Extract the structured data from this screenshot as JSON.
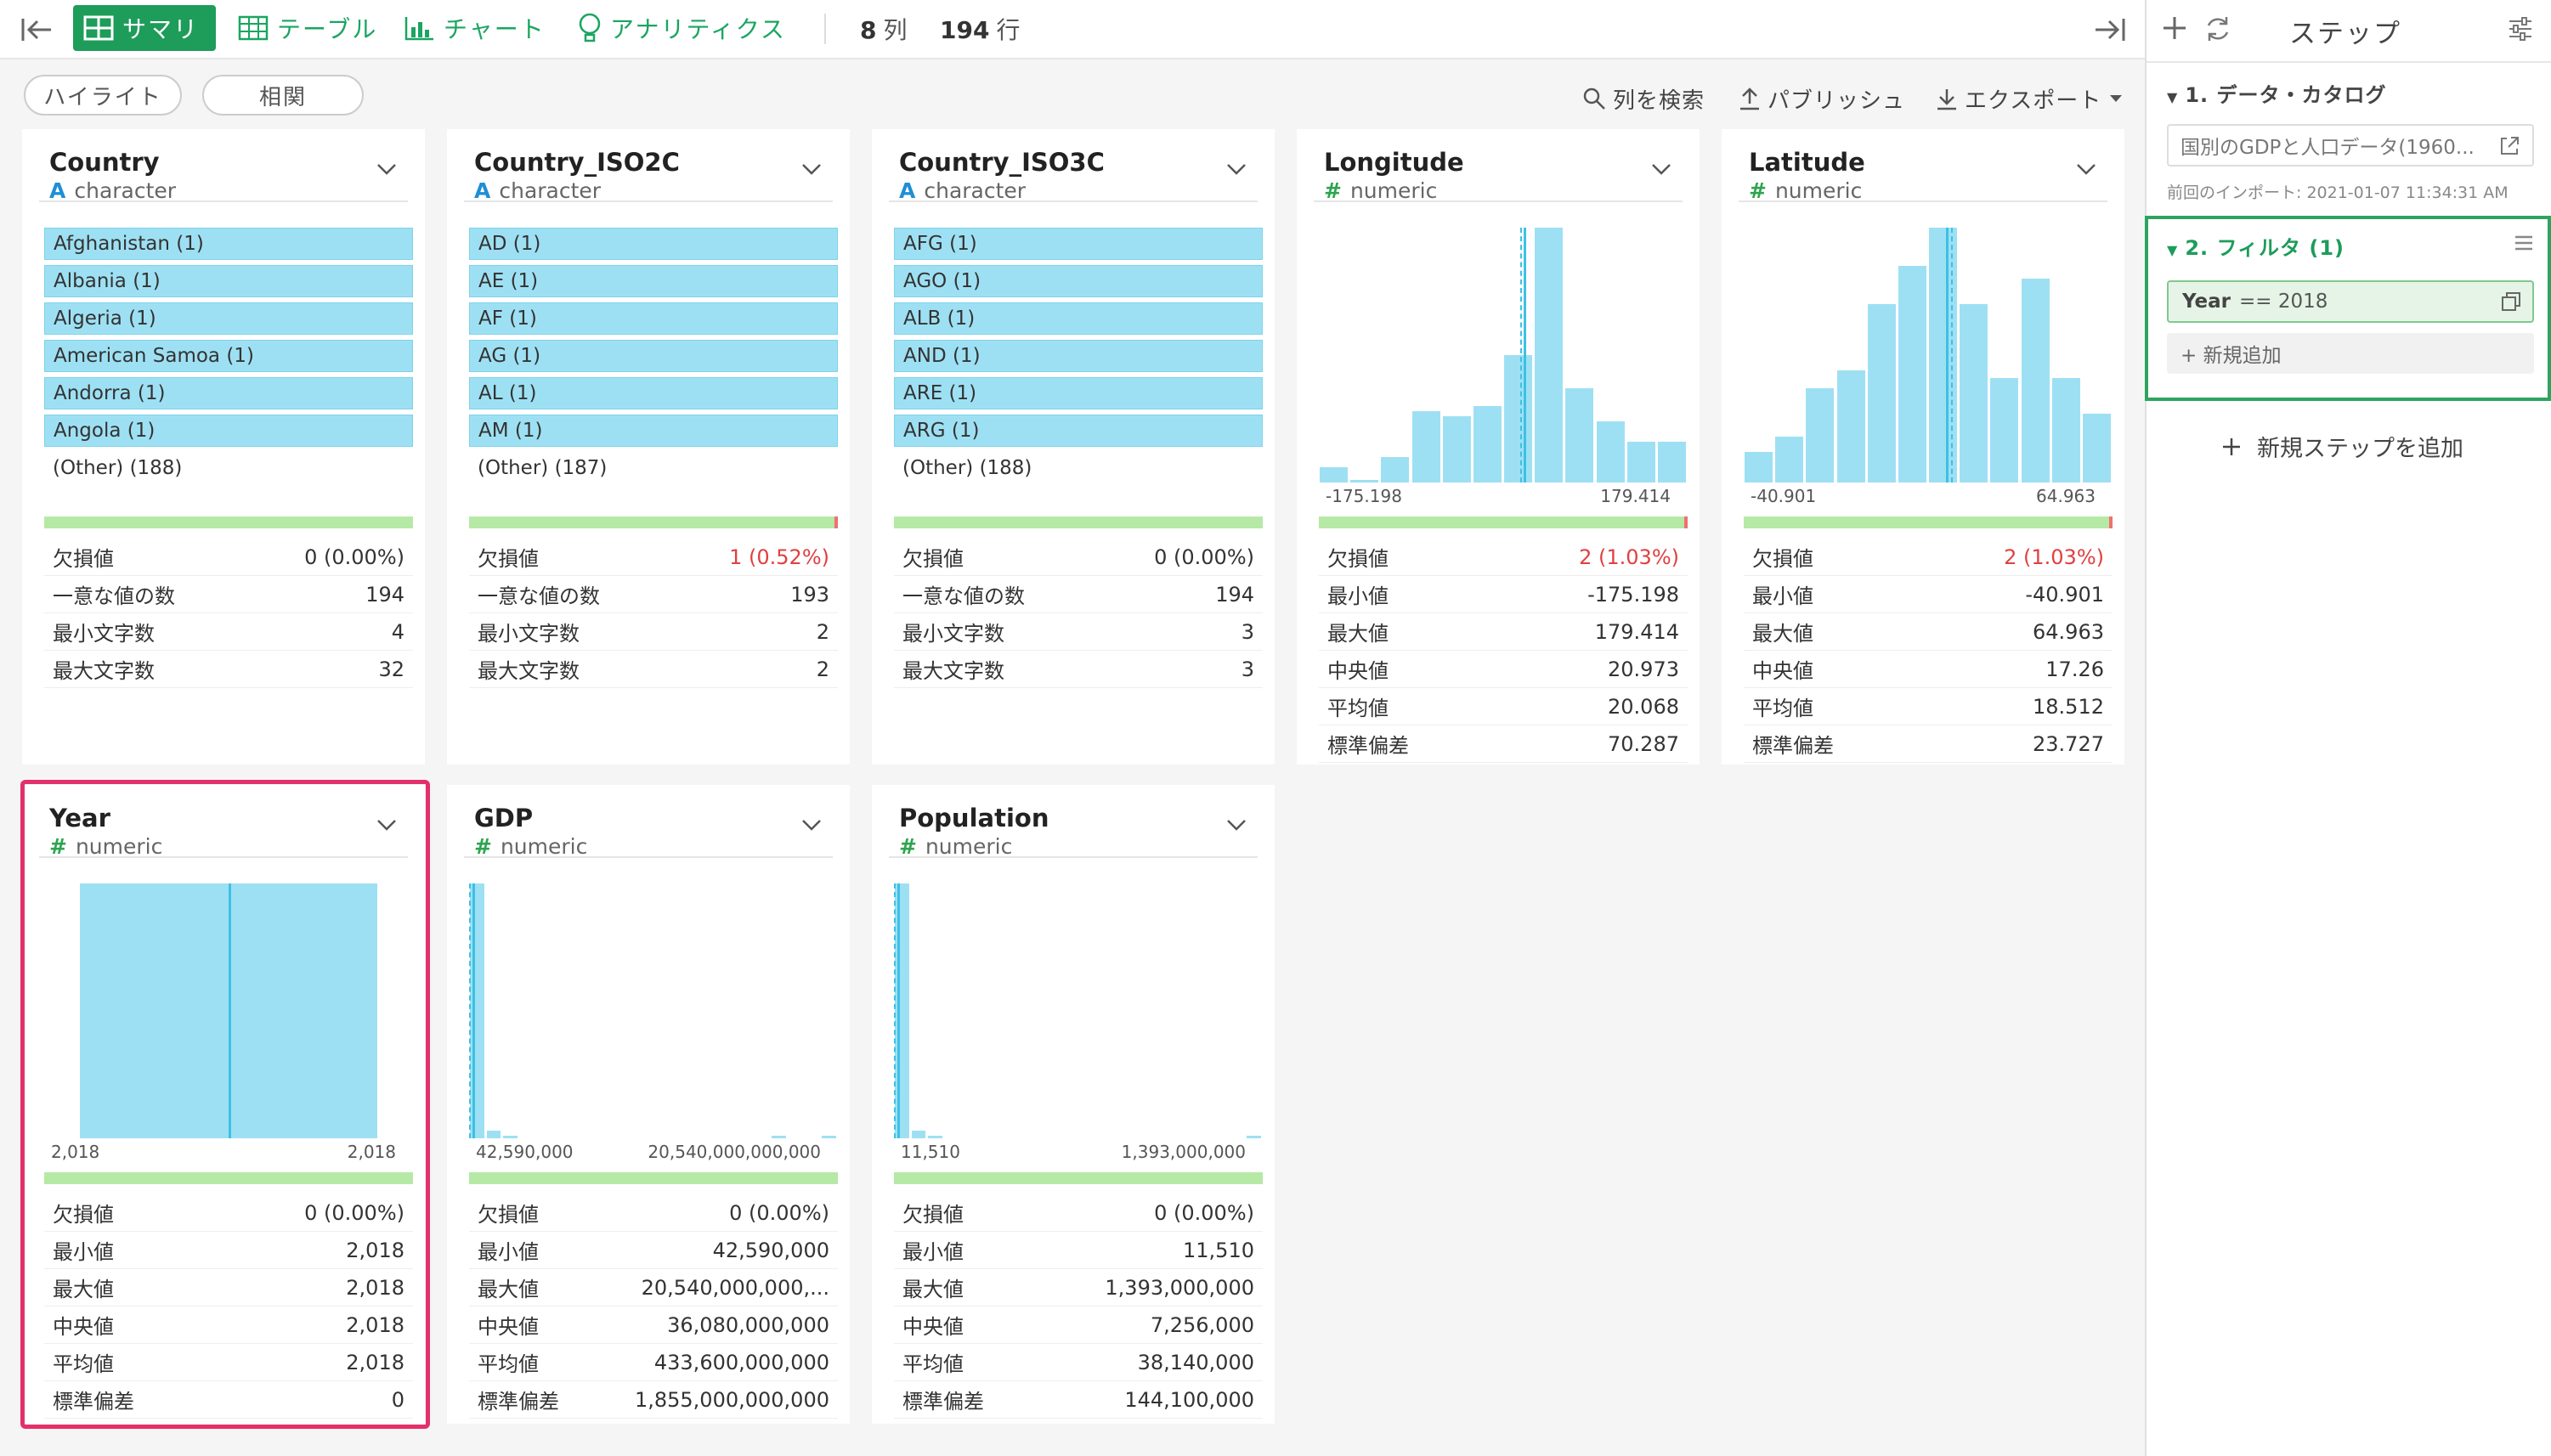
{
  "toolbar": {
    "tabs": [
      {
        "label": "サマリ",
        "active": true
      },
      {
        "label": "テーブル"
      },
      {
        "label": "チャート"
      },
      {
        "label": "アナリティクス"
      }
    ],
    "col_count": "8",
    "col_unit": "列",
    "row_count": "194",
    "row_unit": "行"
  },
  "subbar": {
    "highlight": "ハイライト",
    "correlation": "相関",
    "search_cols": "列を検索",
    "publish": "パブリッシュ",
    "export": "エクスポート"
  },
  "stat_labels": {
    "missing": "欠損値",
    "unique": "一意な値の数",
    "min_len": "最小文字数",
    "max_len": "最大文字数",
    "min": "最小値",
    "max": "最大値",
    "median": "中央値",
    "mean": "平均値",
    "sd": "標準偏差"
  },
  "columns": [
    {
      "name": "Country",
      "type": "character",
      "type_icon": "A",
      "values": [
        "Afghanistan (1)",
        "Albania (1)",
        "Algeria (1)",
        "American Samoa (1)",
        "Andorra (1)",
        "Angola (1)"
      ],
      "other": "(Other) (188)",
      "stats": {
        "missing": "0 (0.00%)",
        "unique": "194",
        "min_len": "4",
        "max_len": "32"
      }
    },
    {
      "name": "Country_ISO2C",
      "type": "character",
      "type_icon": "A",
      "values": [
        "AD (1)",
        "AE (1)",
        "AF (1)",
        "AG (1)",
        "AL (1)",
        "AM (1)"
      ],
      "other": "(Other) (187)",
      "stats": {
        "missing": "1 (0.52%)",
        "unique": "193",
        "min_len": "2",
        "max_len": "2"
      }
    },
    {
      "name": "Country_ISO3C",
      "type": "character",
      "type_icon": "A",
      "values": [
        "AFG (1)",
        "AGO (1)",
        "ALB (1)",
        "AND (1)",
        "ARE (1)",
        "ARG (1)"
      ],
      "other": "(Other) (188)",
      "stats": {
        "missing": "0 (0.00%)",
        "unique": "194",
        "min_len": "3",
        "max_len": "3"
      }
    },
    {
      "name": "Longitude",
      "type": "numeric",
      "type_icon": "#",
      "axis_min": "-175.198",
      "axis_max": "179.414",
      "histogram": [
        0.06,
        0.01,
        0.1,
        0.28,
        0.26,
        0.3,
        0.5,
        1.0,
        0.37,
        0.24,
        0.16,
        0.16
      ],
      "stats": {
        "missing": "2 (1.03%)",
        "min": "-175.198",
        "max": "179.414",
        "median": "20.973",
        "mean": "20.068",
        "sd": "70.287"
      }
    },
    {
      "name": "Latitude",
      "type": "numeric",
      "type_icon": "#",
      "axis_min": "-40.901",
      "axis_max": "64.963",
      "histogram": [
        0.12,
        0.18,
        0.37,
        0.44,
        0.7,
        0.85,
        1.0,
        0.7,
        0.41,
        0.8,
        0.41,
        0.27
      ],
      "stats": {
        "missing": "2 (1.03%)",
        "min": "-40.901",
        "max": "64.963",
        "median": "17.26",
        "mean": "18.512",
        "sd": "23.727"
      }
    },
    {
      "name": "Year",
      "type": "numeric",
      "type_icon": "#",
      "axis_min": "2,018",
      "axis_max": "2,018",
      "histogram": [
        1.0
      ],
      "stats": {
        "missing": "0 (0.00%)",
        "min": "2,018",
        "max": "2,018",
        "median": "2,018",
        "mean": "2,018",
        "sd": "0"
      }
    },
    {
      "name": "GDP",
      "type": "numeric",
      "type_icon": "#",
      "axis_min": "42,590,000",
      "axis_max": "20,540,000,000,000",
      "histogram": [
        1.0,
        0.03,
        0.01,
        0,
        0,
        0,
        0,
        0,
        0,
        0,
        0,
        0,
        0,
        0,
        0,
        0,
        0,
        0,
        0.01,
        0,
        0,
        0.01
      ],
      "stats": {
        "missing": "0 (0.00%)",
        "min": "42,590,000",
        "max": "20,540,000,000,...",
        "median": "36,080,000,000",
        "mean": "433,600,000,000",
        "sd": "1,855,000,000,000"
      }
    },
    {
      "name": "Population",
      "type": "numeric",
      "type_icon": "#",
      "axis_min": "11,510",
      "axis_max": "1,393,000,000",
      "histogram": [
        1.0,
        0.03,
        0.01,
        0,
        0,
        0,
        0,
        0,
        0,
        0,
        0,
        0,
        0,
        0,
        0,
        0,
        0,
        0,
        0,
        0,
        0,
        0.01
      ],
      "stats": {
        "missing": "0 (0.00%)",
        "min": "11,510",
        "max": "1,393,000,000",
        "median": "7,256,000",
        "mean": "38,140,000",
        "sd": "144,100,000"
      }
    }
  ],
  "steps_panel": {
    "title": "ステップ",
    "step1_title": "1. データ・カタログ",
    "step1_source": "国別のGDPと人口データ(1960...",
    "step1_import": "前回のインポート: 2021-01-07 11:34:31 AM",
    "step2_title": "2. フィルタ (1)",
    "filter_col": "Year",
    "filter_expr": "== 2018",
    "add_filter": "+ 新規追加",
    "add_step": "新規ステップを追加"
  },
  "colors": {
    "accent_green": "#1e9c5a",
    "bar_fill": "#9ee0f3",
    "highlight_border": "#e3306a",
    "missing_red": "#e04040"
  }
}
